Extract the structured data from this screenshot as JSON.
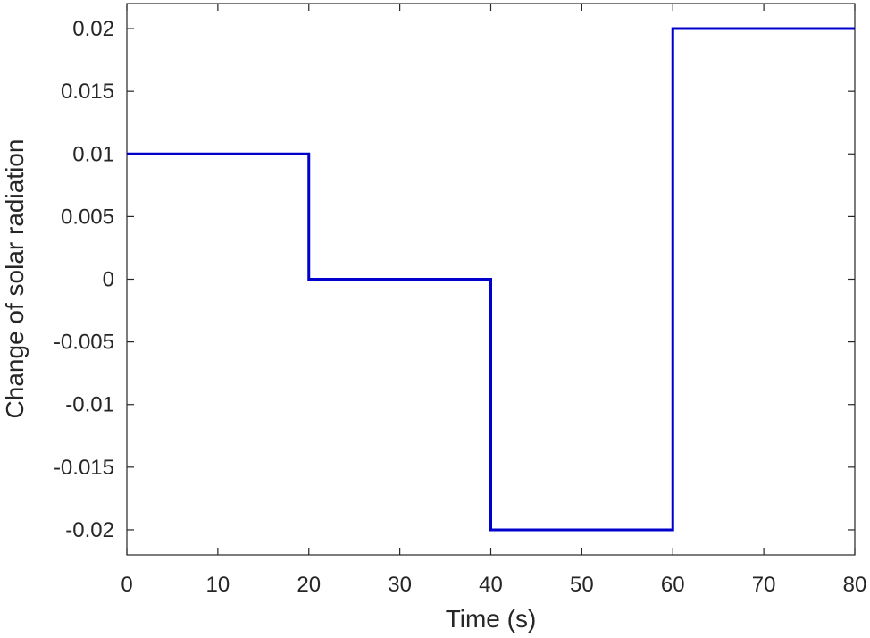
{
  "chart_data": {
    "type": "line",
    "title": "",
    "xlabel": "Time (s)",
    "ylabel": "Change of solar radiation",
    "xlim": [
      0,
      80
    ],
    "ylim": [
      -0.022,
      0.022
    ],
    "grid": false,
    "x_ticks": [
      0,
      10,
      20,
      30,
      40,
      50,
      60,
      70,
      80
    ],
    "x_tick_labels": [
      "0",
      "10",
      "20",
      "30",
      "40",
      "50",
      "60",
      "70",
      "80"
    ],
    "y_ticks": [
      0.02,
      0.015,
      0.01,
      0.005,
      0,
      -0.005,
      -0.01,
      -0.015,
      -0.02
    ],
    "y_tick_labels": [
      "0.02",
      "0.015",
      "0.01",
      "0.005",
      "0",
      "-0.005",
      "-0.01",
      "-0.015",
      "-0.02"
    ],
    "series": [
      {
        "color": "#0000cc",
        "x": [
          0,
          20,
          20,
          40,
          40,
          60,
          60,
          80
        ],
        "y": [
          0.01,
          0.01,
          0,
          0,
          -0.02,
          -0.02,
          0.02,
          0.02
        ]
      }
    ]
  }
}
